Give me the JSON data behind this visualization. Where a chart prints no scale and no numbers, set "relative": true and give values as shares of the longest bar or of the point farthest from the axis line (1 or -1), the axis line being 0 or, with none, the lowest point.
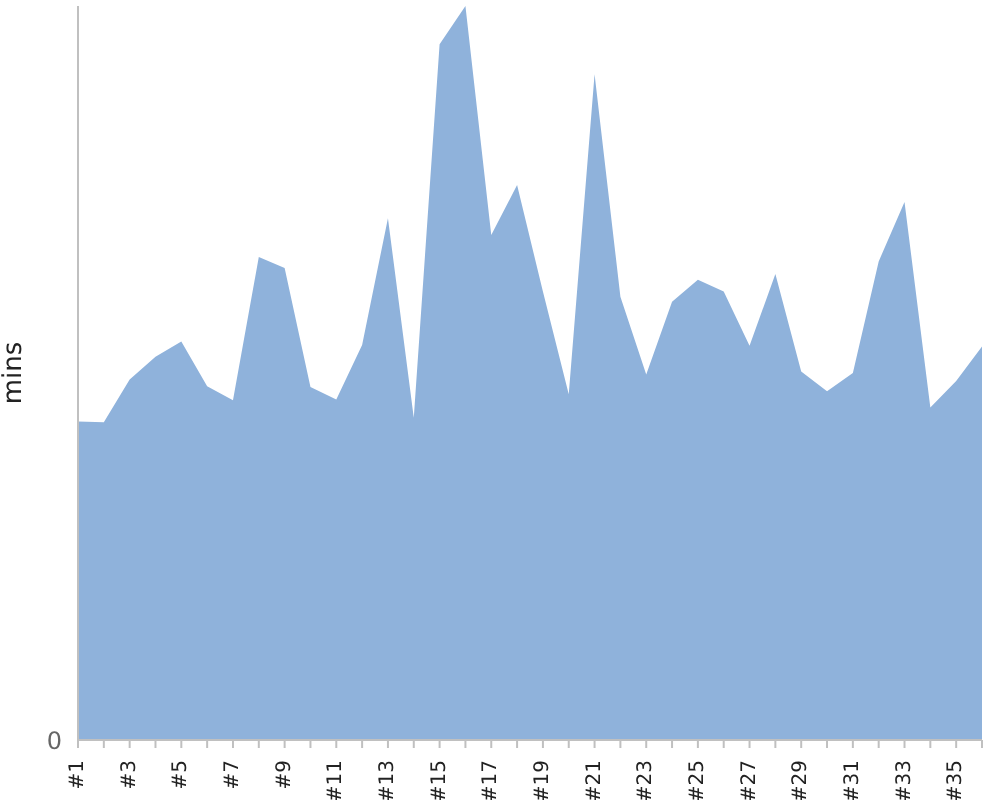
{
  "chart_data": {
    "type": "area",
    "ylabel": "mins",
    "relative": true,
    "annotations": [
      "0"
    ],
    "categories": [
      "#1",
      null,
      "#3",
      null,
      "#5",
      null,
      "#7",
      null,
      "#9",
      null,
      "#11",
      null,
      "#13",
      null,
      "#15",
      null,
      "#17",
      null,
      "#19",
      null,
      "#21",
      null,
      "#23",
      null,
      "#25",
      null,
      "#27",
      null,
      "#29",
      null,
      "#31",
      null,
      "#33",
      null,
      "#35",
      null
    ],
    "series": [
      {
        "color": "#8fb2db",
        "values": [
          0.434,
          0.433,
          0.491,
          0.522,
          0.543,
          0.482,
          0.463,
          0.658,
          0.643,
          0.481,
          0.464,
          0.538,
          0.711,
          0.439,
          0.948,
          1.0,
          0.688,
          0.756,
          0.611,
          0.471,
          0.907,
          0.604,
          0.498,
          0.597,
          0.627,
          0.611,
          0.537,
          0.635,
          0.502,
          0.475,
          0.5,
          0.652,
          0.733,
          0.453,
          0.489,
          0.536
        ]
      }
    ],
    "grid": false,
    "legend": false
  }
}
